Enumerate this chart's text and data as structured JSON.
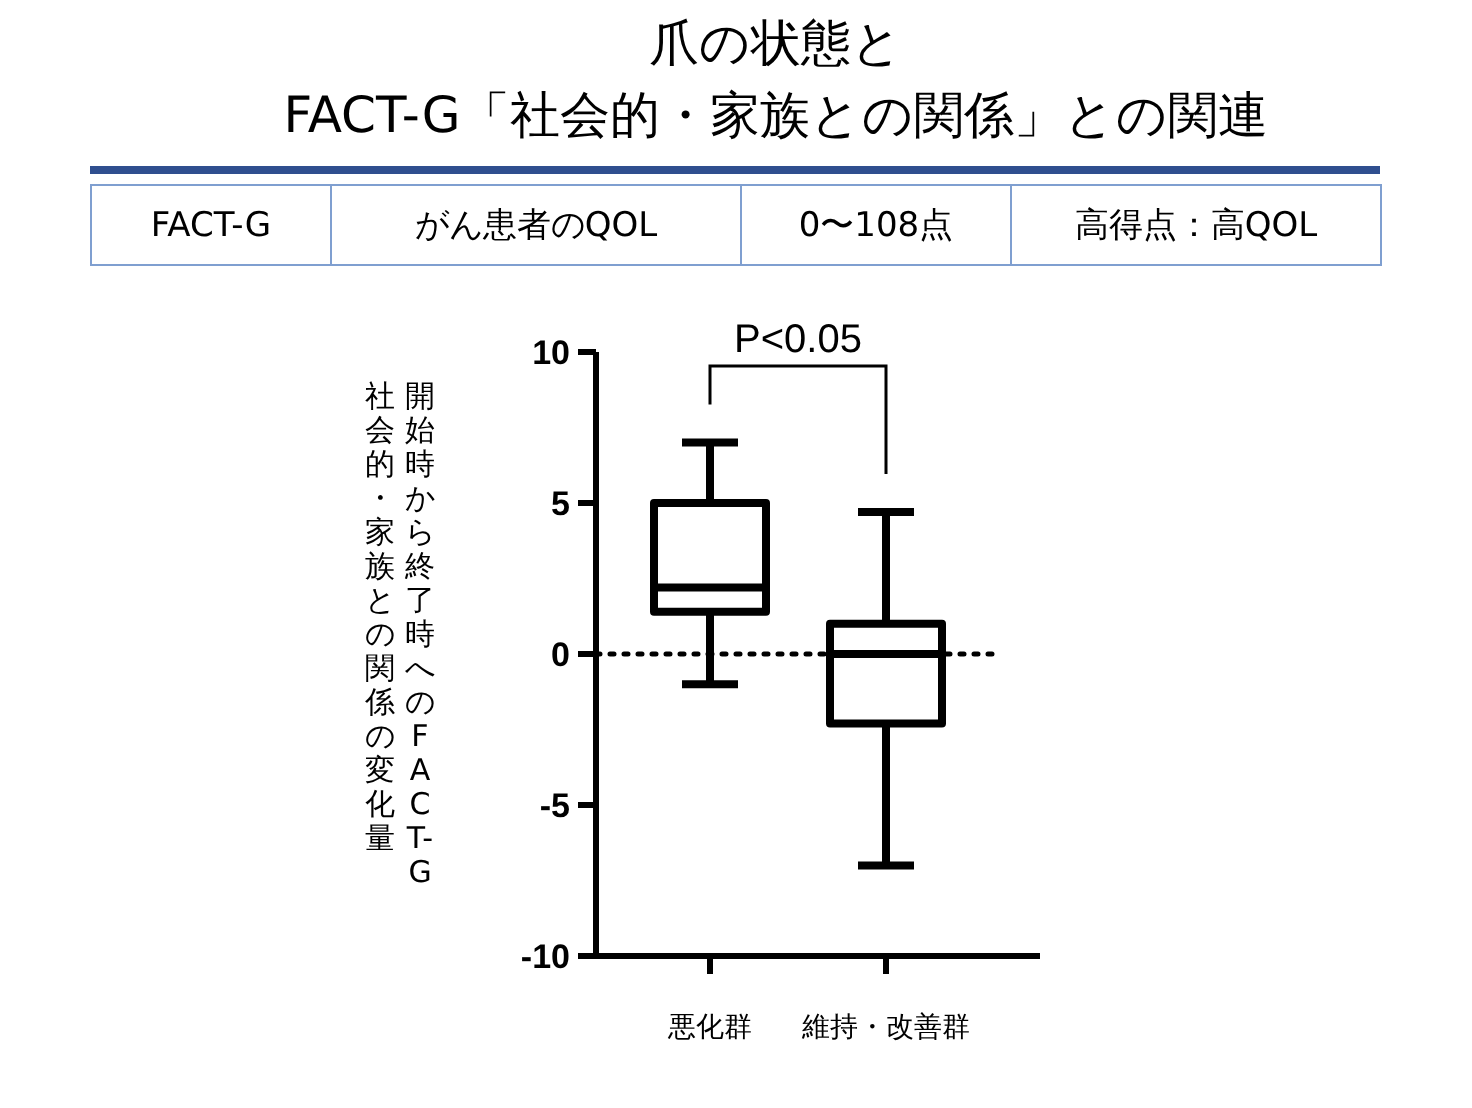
{
  "chart_data": {
    "type": "box",
    "title": "爪の状態と\nFACT-G「社会的・家族との関係」との関連",
    "ylabel": "開始時から終了時へのFACT-G\n社会的・家族との関係の変化量",
    "categories": [
      "悪化群",
      "維持・改善群"
    ],
    "boxes": [
      {
        "low": -1,
        "q1": 1.4,
        "median": 2.2,
        "q3": 5,
        "high": 7
      },
      {
        "low": -7,
        "q1": -2.3,
        "median": 0,
        "q3": 1,
        "high": 4.7
      }
    ],
    "color": "#000000",
    "ylim": [
      -10,
      10
    ],
    "yticks": [
      -10,
      -5,
      0,
      5,
      10
    ],
    "ref_lines": [
      {
        "axis": "y",
        "value": 0,
        "line_style": "dotted",
        "color": "#000000"
      }
    ],
    "annotations": [
      "FACT-G",
      "がん患者のQOL",
      "0〜108点",
      "高得点：高QOL",
      "P<0.05"
    ],
    "grid": false
  }
}
